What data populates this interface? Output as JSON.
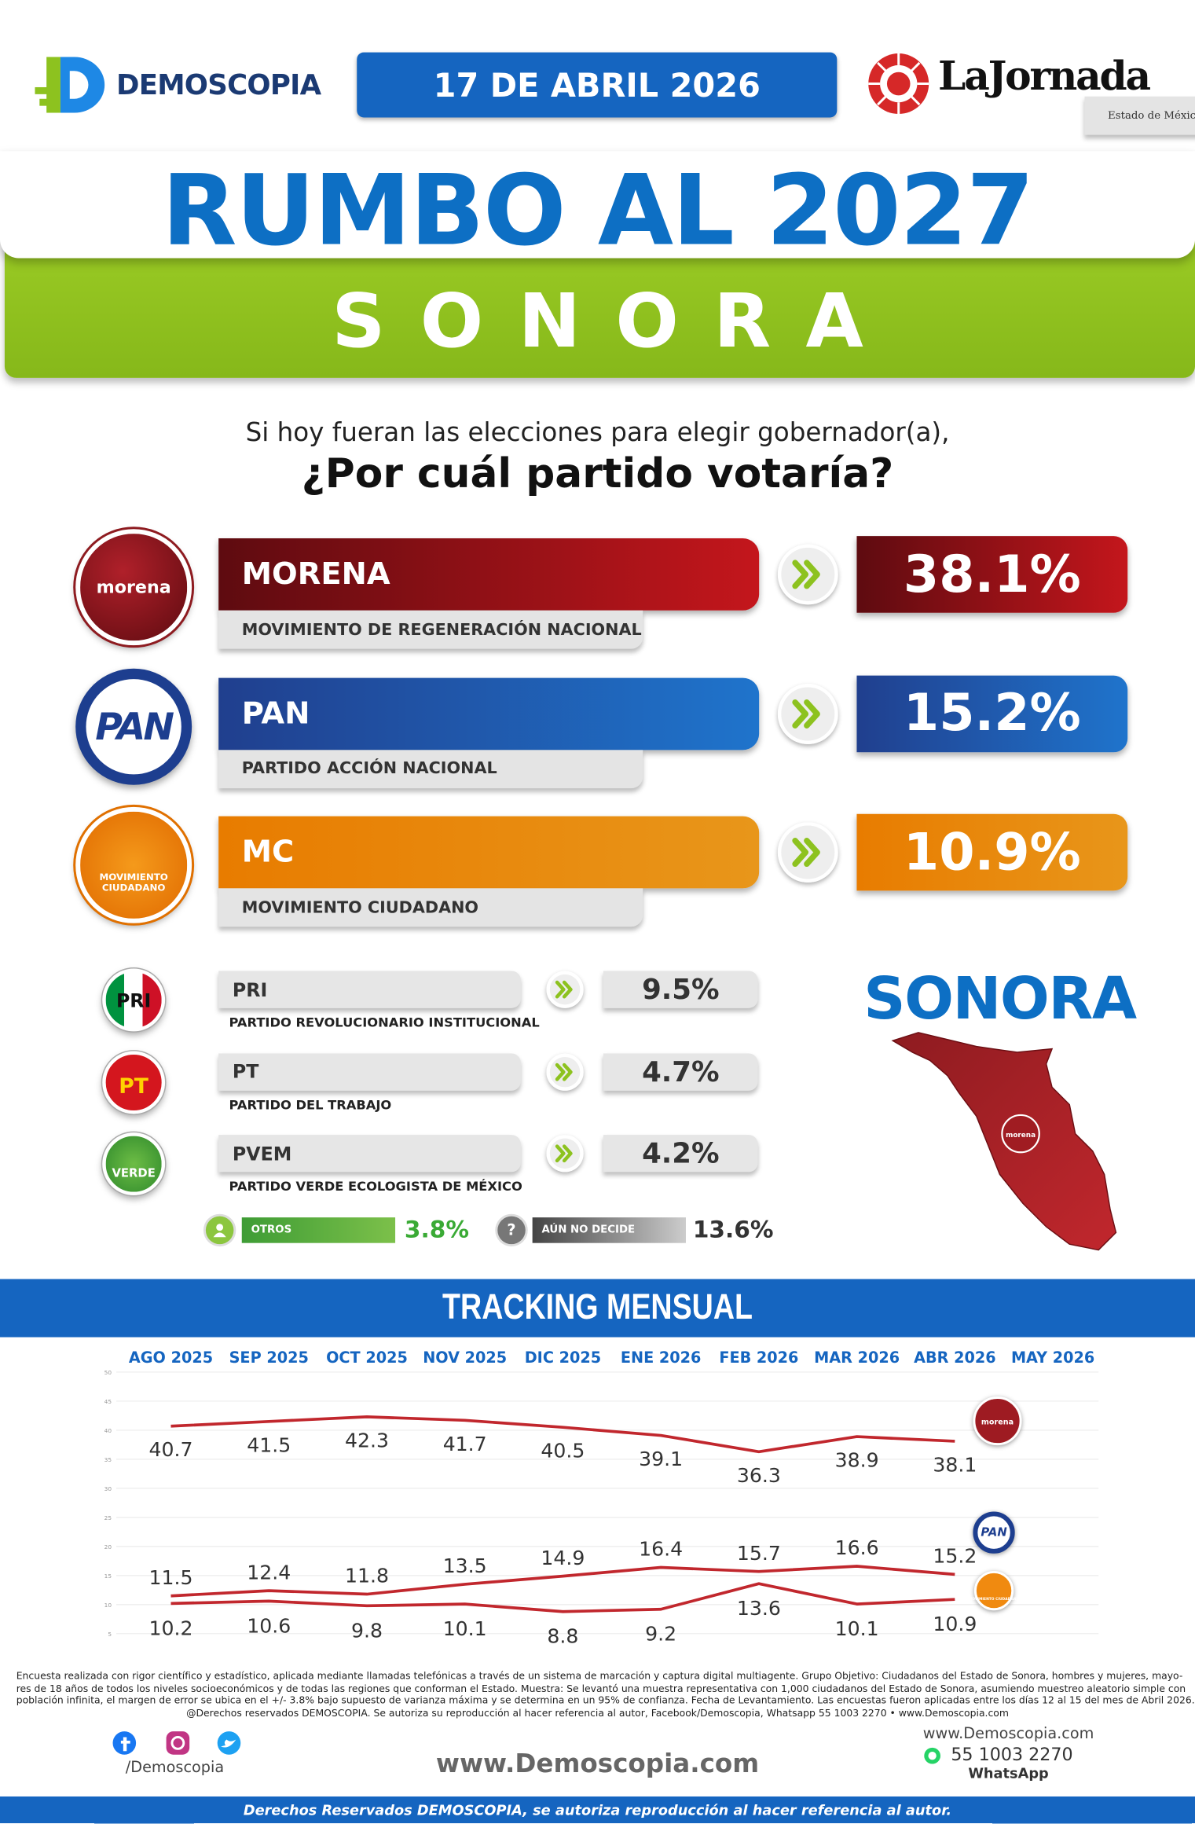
{
  "header": {
    "brand": "DEMOSCOPIA",
    "date": "17 DE ABRIL 2026",
    "partner": "LaJornada",
    "partner_sub": "Estado de México"
  },
  "title": "RUMBO AL 2027",
  "state": "SONORA",
  "question": {
    "line1": "Si hoy fueran las elecciones para elegir gobernador(a),",
    "line2": "¿Por cuál partido votaría?"
  },
  "main_parties": [
    {
      "logo": "morena",
      "name": "MORENA",
      "full_name": "MOVIMIENTO DE REGENERACIÓN NACIONAL",
      "value": "38.1%"
    },
    {
      "logo": "PAN",
      "name": "PAN",
      "full_name": "PARTIDO ACCIÓN NACIONAL",
      "value": "15.2%"
    },
    {
      "logo": "MOVIMIENTO CIUDADANO",
      "name": "MC",
      "full_name": "MOVIMIENTO CIUDADANO",
      "value": "10.9%"
    }
  ],
  "minor_parties": [
    {
      "logo": "PRI",
      "name": "PRI",
      "full_name": "PARTIDO REVOLUCIONARIO INSTITUCIONAL",
      "value": "9.5%"
    },
    {
      "logo": "PT",
      "name": "PT",
      "full_name": "PARTIDO DEL TRABAJO",
      "value": "4.7%"
    },
    {
      "logo": "VERDE",
      "name": "PVEM",
      "full_name": "PARTIDO VERDE ECOLOGISTA DE MÉXICO",
      "value": "4.2%"
    }
  ],
  "others": [
    {
      "name": "OTROS",
      "value": "3.8%"
    },
    {
      "icon": "?",
      "name": "AÚN NO DECIDE",
      "value": "13.6%"
    }
  ],
  "map": {
    "title": "SONORA",
    "logo": "morena"
  },
  "tracking": {
    "title": "TRACKING MENSUAL"
  },
  "chart_data": {
    "type": "line",
    "categories": [
      "AGO 2025",
      "SEP 2025",
      "OCT 2025",
      "NOV 2025",
      "DIC 2025",
      "ENE 2026",
      "FEB 2026",
      "MAR 2026",
      "ABR 2026",
      "MAY 2026"
    ],
    "series": [
      {
        "name": "morena",
        "color": "#c1272d",
        "values": [
          40.7,
          41.5,
          42.3,
          41.7,
          40.5,
          39.1,
          36.3,
          38.9,
          38.1,
          null
        ]
      },
      {
        "name": "PAN",
        "color": "#c1272d",
        "values": [
          11.5,
          12.4,
          11.8,
          13.5,
          14.9,
          16.4,
          15.7,
          16.6,
          15.2,
          null
        ]
      },
      {
        "name": "MOVIMIENTO CIUDADANO",
        "color": "#c1272d",
        "values": [
          10.2,
          10.6,
          9.8,
          10.1,
          8.8,
          9.2,
          13.6,
          10.1,
          10.9,
          null
        ]
      }
    ],
    "ylim": [
      5,
      50
    ],
    "yticks": [
      5,
      10,
      15,
      20,
      25,
      30,
      35,
      40,
      45,
      50
    ],
    "grid": true
  },
  "footer": {
    "notes": [
      "Encuesta realizada con rigor científico y estadístico, aplicada mediante llamadas telefónicas a través de un sistema de marcación y captura digital multiagente. Grupo Objetivo: Ciudadanos del Estado de Sonora, hombres y mujeres, mayo-",
      "res de 18 años de todos los niveles socioeconómicos y de todas las regiones que conforman el Estado. Muestra: Se levantó una muestra representativa con 1,000 ciudadanos del Estado de Sonora, asumiendo muestreo aleatorio simple con",
      "población infinita, el margen de error se ubica en el +/- 3.8% bajo supuesto de varianza máxima y se determina en un 95% de confianza. Fecha de Levantamiento. Las encuestas fueron aplicadas entre los días 12 al 15 del mes de Abril 2026.",
      "@Derechos reservados DEMOSCOPIA. Se autoriza su reproducción al hacer referencia al autor, Facebook/Demoscopia, Whatsapp 55 1003 2270 • www.Demoscopia.com"
    ],
    "social": "/Demoscopia",
    "site": "www.Demoscopia.com",
    "contact_site": "www.Demoscopia.com",
    "phone": "55 1003 2270",
    "whatsapp": "WhatsApp",
    "rights": "Derechos Reservados DEMOSCOPIA, se autoriza reproducción al hacer referencia al autor."
  }
}
